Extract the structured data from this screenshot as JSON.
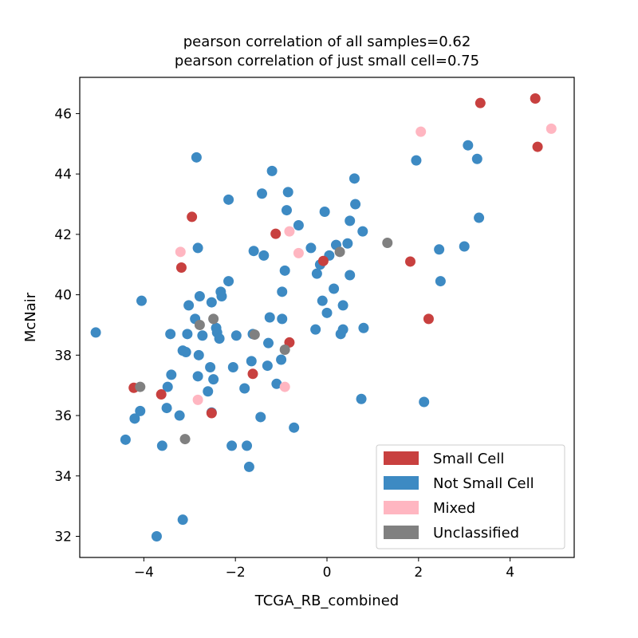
{
  "chart_data": {
    "type": "scatter",
    "title": [
      "pearson correlation of all samples=0.62",
      "pearson correlation of just small cell=0.75"
    ],
    "xlabel": "TCGA_RB_combined",
    "ylabel": "McNair",
    "xlim": [
      -5.4,
      5.4
    ],
    "ylim": [
      31.3,
      47.2
    ],
    "xticks": [
      -4,
      -2,
      0,
      2,
      4
    ],
    "yticks": [
      32,
      34,
      36,
      38,
      40,
      42,
      44,
      46
    ],
    "xtick_labels": [
      "−4",
      "−2",
      "0",
      "2",
      "4"
    ],
    "ytick_labels": [
      "32",
      "34",
      "36",
      "38",
      "40",
      "42",
      "44",
      "46"
    ],
    "grid": false,
    "legend_position": "lower-right",
    "series": [
      {
        "name": "Not Small Cell",
        "color": "#3d8ac3",
        "points": [
          [
            -5.05,
            38.75
          ],
          [
            -4.4,
            35.2
          ],
          [
            -4.2,
            35.9
          ],
          [
            -4.08,
            36.15
          ],
          [
            -4.05,
            39.8
          ],
          [
            -3.72,
            32.0
          ],
          [
            -3.6,
            35.0
          ],
          [
            -3.5,
            36.25
          ],
          [
            -3.48,
            36.95
          ],
          [
            -3.42,
            38.7
          ],
          [
            -3.4,
            37.35
          ],
          [
            -3.22,
            36.0
          ],
          [
            -3.15,
            32.55
          ],
          [
            -3.15,
            38.15
          ],
          [
            -3.08,
            38.1
          ],
          [
            -3.05,
            38.7
          ],
          [
            -3.02,
            39.65
          ],
          [
            -2.88,
            39.2
          ],
          [
            -2.85,
            44.55
          ],
          [
            -2.82,
            41.55
          ],
          [
            -2.82,
            37.3
          ],
          [
            -2.8,
            38.0
          ],
          [
            -2.78,
            39.95
          ],
          [
            -2.72,
            38.65
          ],
          [
            -2.6,
            36.8
          ],
          [
            -2.55,
            37.6
          ],
          [
            -2.52,
            36.1
          ],
          [
            -2.52,
            39.75
          ],
          [
            -2.48,
            37.2
          ],
          [
            -2.42,
            38.9
          ],
          [
            -2.4,
            38.75
          ],
          [
            -2.35,
            38.55
          ],
          [
            -2.32,
            40.1
          ],
          [
            -2.3,
            39.95
          ],
          [
            -2.15,
            40.45
          ],
          [
            -2.15,
            43.15
          ],
          [
            -2.08,
            35.0
          ],
          [
            -2.05,
            37.6
          ],
          [
            -1.98,
            38.65
          ],
          [
            -1.8,
            36.9
          ],
          [
            -1.75,
            35.0
          ],
          [
            -1.7,
            34.3
          ],
          [
            -1.65,
            37.8
          ],
          [
            -1.62,
            38.7
          ],
          [
            -1.6,
            41.45
          ],
          [
            -1.45,
            35.95
          ],
          [
            -1.42,
            43.35
          ],
          [
            -1.38,
            41.3
          ],
          [
            -1.3,
            37.65
          ],
          [
            -1.28,
            38.4
          ],
          [
            -1.25,
            39.25
          ],
          [
            -1.2,
            44.1
          ],
          [
            -1.1,
            37.05
          ],
          [
            -1.0,
            37.85
          ],
          [
            -0.98,
            39.2
          ],
          [
            -0.98,
            40.1
          ],
          [
            -0.92,
            40.8
          ],
          [
            -0.88,
            42.8
          ],
          [
            -0.85,
            43.4
          ],
          [
            -0.72,
            35.6
          ],
          [
            -0.62,
            42.3
          ],
          [
            -0.35,
            41.55
          ],
          [
            -0.25,
            38.85
          ],
          [
            -0.22,
            40.7
          ],
          [
            -0.15,
            41.0
          ],
          [
            -0.1,
            39.8
          ],
          [
            -0.05,
            42.75
          ],
          [
            0.0,
            39.4
          ],
          [
            0.05,
            41.3
          ],
          [
            0.15,
            40.2
          ],
          [
            0.2,
            41.65
          ],
          [
            0.3,
            38.7
          ],
          [
            0.35,
            38.85
          ],
          [
            0.35,
            39.65
          ],
          [
            0.45,
            41.7
          ],
          [
            0.5,
            42.45
          ],
          [
            0.5,
            40.65
          ],
          [
            0.6,
            43.85
          ],
          [
            0.62,
            43.0
          ],
          [
            0.75,
            36.55
          ],
          [
            0.78,
            42.1
          ],
          [
            0.8,
            38.9
          ],
          [
            1.95,
            44.45
          ],
          [
            2.12,
            36.45
          ],
          [
            2.45,
            41.5
          ],
          [
            2.48,
            40.45
          ],
          [
            3.0,
            41.6
          ],
          [
            3.08,
            44.95
          ],
          [
            3.28,
            44.5
          ],
          [
            3.32,
            42.55
          ]
        ]
      },
      {
        "name": "Small Cell",
        "color": "#c8403f",
        "points": [
          [
            -4.22,
            36.92
          ],
          [
            -3.62,
            36.7
          ],
          [
            -3.18,
            40.9
          ],
          [
            -2.95,
            42.58
          ],
          [
            -2.52,
            36.08
          ],
          [
            -1.62,
            37.38
          ],
          [
            -1.12,
            42.02
          ],
          [
            -0.82,
            38.42
          ],
          [
            -0.08,
            41.12
          ],
          [
            1.82,
            41.1
          ],
          [
            2.22,
            39.2
          ],
          [
            3.35,
            46.35
          ],
          [
            4.55,
            46.5
          ],
          [
            4.6,
            44.9
          ]
        ]
      },
      {
        "name": "Mixed",
        "color": "#ffb6c1",
        "points": [
          [
            -3.2,
            41.42
          ],
          [
            -2.82,
            36.52
          ],
          [
            -0.92,
            36.95
          ],
          [
            -0.82,
            42.1
          ],
          [
            -0.62,
            41.38
          ],
          [
            2.05,
            45.4
          ],
          [
            4.9,
            45.5
          ]
        ]
      },
      {
        "name": "Unclassified",
        "color": "#808080",
        "points": [
          [
            -4.08,
            36.95
          ],
          [
            -3.1,
            35.22
          ],
          [
            -2.78,
            39.0
          ],
          [
            -2.48,
            39.2
          ],
          [
            -1.58,
            38.68
          ],
          [
            -0.92,
            38.18
          ],
          [
            0.28,
            41.42
          ],
          [
            1.32,
            41.72
          ]
        ]
      }
    ],
    "legend": [
      {
        "name": "Small Cell",
        "color": "#c8403f"
      },
      {
        "name": "Not Small Cell",
        "color": "#3d8ac3"
      },
      {
        "name": "Mixed",
        "color": "#ffb6c1"
      },
      {
        "name": "Unclassified",
        "color": "#808080"
      }
    ]
  }
}
